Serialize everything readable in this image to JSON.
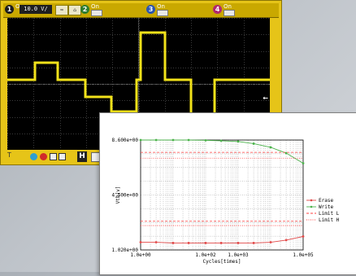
{
  "scope": {
    "channels": [
      {
        "number": "1",
        "state": "On",
        "color": "#e6c418"
      },
      {
        "number": "2",
        "state": "On",
        "color": "#3aa43a"
      },
      {
        "number": "3",
        "state": "On",
        "color": "#3a6fd8"
      },
      {
        "number": "4",
        "state": "On",
        "color": "#d83a8c"
      }
    ],
    "volts_per_div": "10.0 V/",
    "trace_color": "#f2e21a",
    "bottom_marker": "T",
    "horizontal_badge": "H",
    "trigger_marker": "←"
  },
  "chart_data": {
    "type": "line",
    "ylabel": "Vth[v]",
    "xlabel": "Cycles[times]",
    "x_scale": "log",
    "grid": true,
    "ylim": [
      1.02,
      8.6
    ],
    "y_tick_labels": [
      "8.600e+00",
      "4.500e+00",
      "1.020e+00"
    ],
    "x_tick_labels": [
      "1.0e+00",
      "1.0e+02",
      "1.0e+03",
      "1.0e+05"
    ],
    "x_ticks": [
      1,
      100,
      1000,
      100000
    ],
    "xlim": [
      1,
      100000
    ],
    "legend_placement": "right",
    "series": [
      {
        "name": "Erase",
        "color": "#e24848",
        "marker": "circle",
        "x": [
          1,
          3,
          10,
          30,
          100,
          300,
          1000,
          3000,
          10000,
          30000,
          100000
        ],
        "y": [
          1.55,
          1.55,
          1.5,
          1.5,
          1.5,
          1.5,
          1.5,
          1.5,
          1.55,
          1.7,
          1.95
        ]
      },
      {
        "name": "Write",
        "color": "#4cb34c",
        "marker": "circle",
        "x": [
          1,
          3,
          10,
          30,
          100,
          300,
          1000,
          3000,
          10000,
          30000,
          100000
        ],
        "y": [
          8.6,
          8.6,
          8.6,
          8.6,
          8.58,
          8.55,
          8.5,
          8.35,
          8.1,
          7.7,
          7.0
        ]
      },
      {
        "name": "Limit L",
        "color": "#ff4040",
        "style": "dashed",
        "y_values": [
          7.75,
          3.0
        ]
      },
      {
        "name": "Limit H",
        "color": "#ff4040",
        "style": "dotted",
        "y_values": [
          7.35,
          2.7
        ]
      }
    ]
  }
}
